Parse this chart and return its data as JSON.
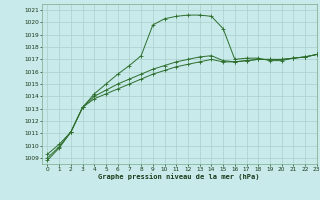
{
  "title": "Graphe pression niveau de la mer (hPa)",
  "xlim": [
    -0.5,
    23
  ],
  "ylim": [
    1008.5,
    1021.5
  ],
  "yticks": [
    1009,
    1010,
    1011,
    1012,
    1013,
    1014,
    1015,
    1016,
    1017,
    1018,
    1019,
    1020,
    1021
  ],
  "xticks": [
    0,
    1,
    2,
    3,
    4,
    5,
    6,
    7,
    8,
    9,
    10,
    11,
    12,
    13,
    14,
    15,
    16,
    17,
    18,
    19,
    20,
    21,
    22,
    23
  ],
  "bg_color": "#c8eaea",
  "grid_color": "#aacfcc",
  "line_color": "#2d6e2d",
  "line1_x": [
    0,
    1,
    2,
    3,
    4,
    5,
    6,
    7,
    8,
    9,
    10,
    11,
    12,
    13,
    14,
    15,
    16,
    17,
    18,
    19,
    20,
    21,
    22,
    23
  ],
  "line1_y": [
    1008.8,
    1009.8,
    1011.1,
    1013.1,
    1014.2,
    1015.0,
    1015.8,
    1016.5,
    1017.3,
    1019.8,
    1020.3,
    1020.5,
    1020.6,
    1020.6,
    1020.5,
    1019.5,
    1017.0,
    1017.1,
    1017.1,
    1016.9,
    1016.9,
    1017.1,
    1017.2,
    1017.4
  ],
  "line2_x": [
    0,
    1,
    2,
    3,
    4,
    5,
    6,
    7,
    8,
    9,
    10,
    11,
    12,
    13,
    14,
    15,
    16,
    17,
    18,
    19,
    20,
    21,
    22,
    23
  ],
  "line2_y": [
    1009.0,
    1009.9,
    1011.1,
    1013.1,
    1013.8,
    1014.2,
    1014.6,
    1015.0,
    1015.4,
    1015.8,
    1016.1,
    1016.4,
    1016.6,
    1016.8,
    1017.0,
    1016.8,
    1016.8,
    1016.9,
    1017.0,
    1017.0,
    1017.0,
    1017.1,
    1017.2,
    1017.4
  ],
  "line3_x": [
    0,
    1,
    2,
    3,
    4,
    5,
    6,
    7,
    8,
    9,
    10,
    11,
    12,
    13,
    14,
    15,
    16,
    17,
    18,
    19,
    20,
    21,
    22,
    23
  ],
  "line3_y": [
    1009.3,
    1010.1,
    1011.1,
    1013.1,
    1014.0,
    1014.5,
    1015.0,
    1015.4,
    1015.8,
    1016.2,
    1016.5,
    1016.8,
    1017.0,
    1017.2,
    1017.3,
    1016.9,
    1016.8,
    1016.9,
    1017.0,
    1017.0,
    1017.0,
    1017.1,
    1017.2,
    1017.4
  ]
}
